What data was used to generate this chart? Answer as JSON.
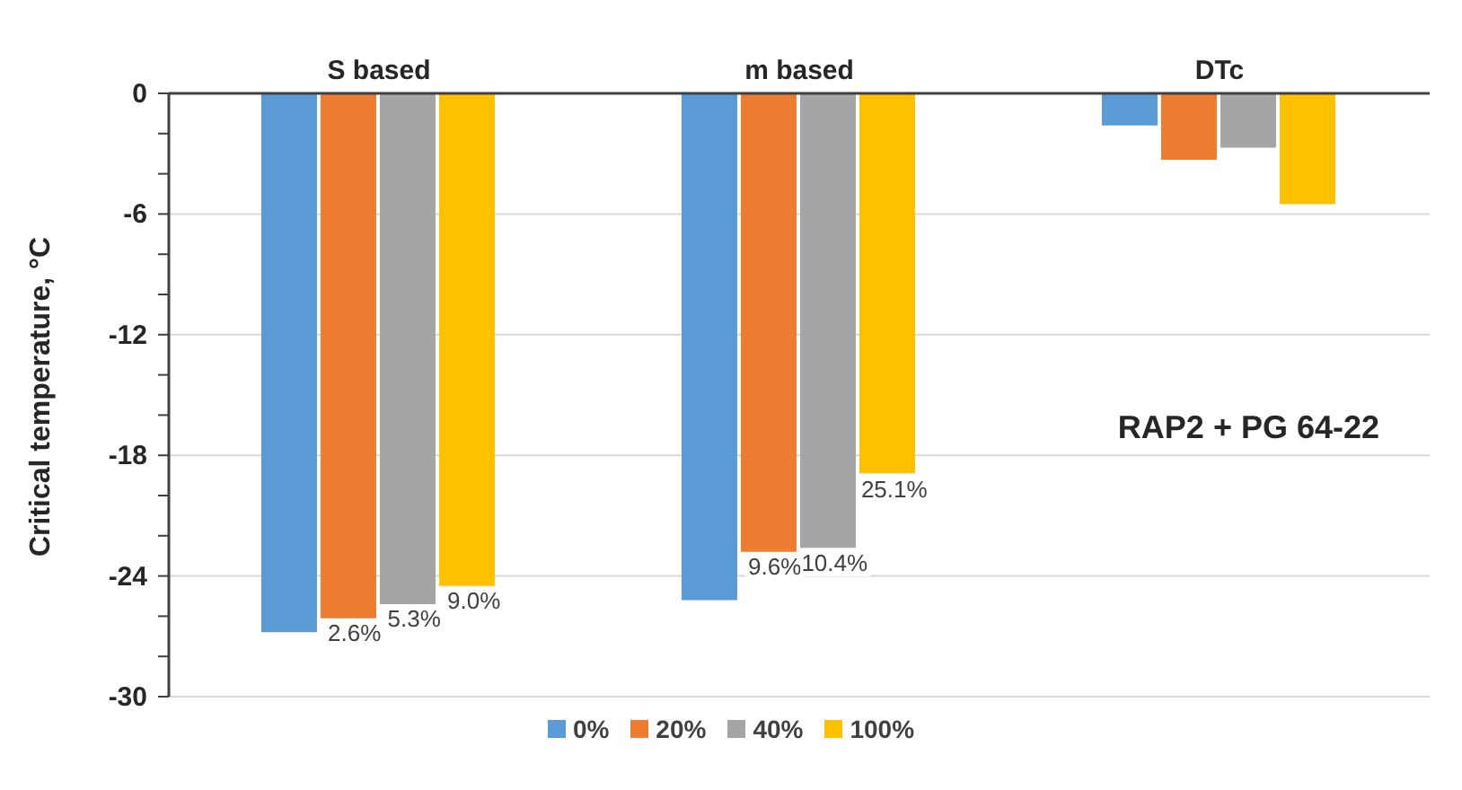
{
  "chart_data": {
    "type": "bar",
    "ylabel": "Critical temperature, °C",
    "categories": [
      "S based",
      "m based",
      "DTc"
    ],
    "series": [
      {
        "name": "0%",
        "color": "#5b9bd5",
        "values": [
          -26.8,
          -25.2,
          -1.6
        ]
      },
      {
        "name": "20%",
        "color": "#ed7d31",
        "values": [
          -26.1,
          -22.8,
          -3.3
        ]
      },
      {
        "name": "40%",
        "color": "#a5a5a5",
        "values": [
          -25.4,
          -22.6,
          -2.7
        ]
      },
      {
        "name": "100%",
        "color": "#ffc000",
        "values": [
          -24.5,
          -18.9,
          -5.5
        ]
      }
    ],
    "ylim": [
      -30,
      0
    ],
    "yticks": [
      0,
      {
        "value": -2,
        "label": null
      },
      {
        "value": -4,
        "label": null
      },
      -6,
      {
        "value": -8,
        "label": null
      },
      {
        "value": -10,
        "label": null
      },
      -12,
      {
        "value": -14,
        "label": null
      },
      {
        "value": -16,
        "label": null
      },
      -18,
      {
        "value": -20,
        "label": null
      },
      {
        "value": -22,
        "label": null
      },
      -24,
      {
        "value": -26,
        "label": null
      },
      {
        "value": -28,
        "label": null
      },
      -30
    ],
    "grid": "y",
    "legend": "bottom",
    "annotations": [
      "RAP2 + PG 64-22",
      {
        "text": "2.6%",
        "x": "S based",
        "y": -26.1
      },
      {
        "text": "5.3%",
        "x": "S based",
        "y": -25.4
      },
      {
        "text": "9.0%",
        "x": "S based",
        "y": -24.5
      },
      {
        "text": "9.6%",
        "x": "m based",
        "y": -22.8
      },
      {
        "text": "10.4%",
        "x": "m based",
        "y": -22.6
      },
      {
        "text": "25.1%",
        "x": "m based",
        "y": -18.9
      }
    ]
  }
}
